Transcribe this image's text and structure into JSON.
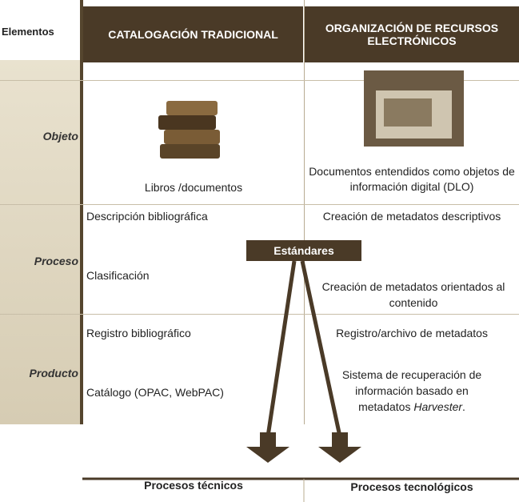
{
  "header": {
    "label": "Elementos",
    "columns": [
      "CATALOGACIÓN TRADICIONAL",
      "ORGANIZACIÓN DE RECURSOS ELECTRÓNICOS"
    ]
  },
  "rows": [
    {
      "label": "Objeto",
      "traditional": [
        "Libros /documentos"
      ],
      "electronic": [
        "Documentos entendidos como objetos de información digital (DLO)"
      ]
    },
    {
      "label": "Proceso",
      "traditional": [
        "Descripción bibliográfica",
        "Clasificación"
      ],
      "electronic": [
        "Creación de metadatos descriptivos",
        "Creación de metadatos orientados al contenido"
      ]
    },
    {
      "label": "Producto",
      "traditional": [
        "Registro bibliográfico",
        "Catálogo (OPAC, WebPAC)"
      ],
      "electronic": [
        "Registro/archivo de metadatos",
        [
          "Sistema de recuperación de información basado en metadatos ",
          "Harvester",
          "."
        ]
      ]
    }
  ],
  "standards": "Estándares",
  "outputs": [
    "Procesos técnicos",
    "Procesos tecnológicos"
  ]
}
